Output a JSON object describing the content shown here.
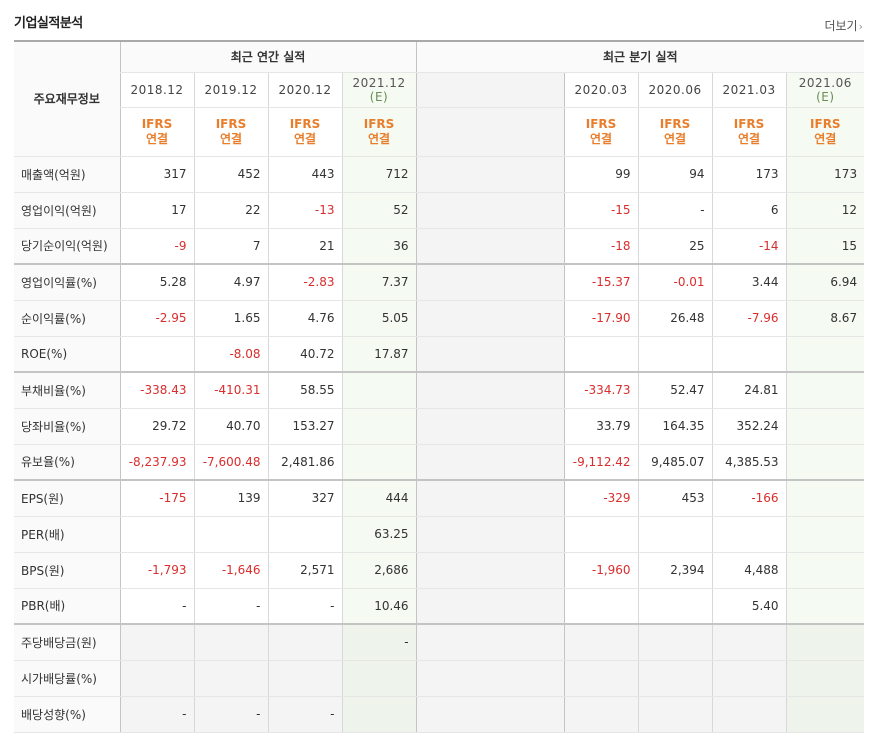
{
  "header": {
    "title": "기업실적분석",
    "more_label": "더보기",
    "more_icon": "chevron-right-icon"
  },
  "table": {
    "corner_label": "주요재무정보",
    "annual_group": "최근 연간 실적",
    "quarter_group": "최근 분기 실적",
    "annual_periods": [
      {
        "label": "2018.12",
        "estimate": false
      },
      {
        "label": "2019.12",
        "estimate": false
      },
      {
        "label": "2020.12",
        "estimate": false
      },
      {
        "label": "2021.12",
        "sub": "(E)",
        "estimate": true
      }
    ],
    "quarter_periods": [
      {
        "label": "2020.03",
        "estimate": false
      },
      {
        "label": "2020.06",
        "estimate": false
      },
      {
        "label": "2021.03",
        "estimate": false
      },
      {
        "label": "2021.06",
        "sub": "(E)",
        "estimate": true
      }
    ],
    "basis_line1": "IFRS",
    "basis_line2": "연결",
    "rows": [
      {
        "label": "매출액(억원)",
        "annual": [
          "317",
          "452",
          "443",
          "712"
        ],
        "quarter": [
          "99",
          "94",
          "173",
          "173"
        ],
        "section_start": false,
        "grey": false
      },
      {
        "label": "영업이익(억원)",
        "annual": [
          "17",
          "22",
          "-13",
          "52"
        ],
        "quarter": [
          "-15",
          "-",
          "6",
          "12"
        ],
        "section_start": false,
        "grey": false
      },
      {
        "label": "당기순이익(억원)",
        "annual": [
          "-9",
          "7",
          "21",
          "36"
        ],
        "quarter": [
          "-18",
          "25",
          "-14",
          "15"
        ],
        "section_start": false,
        "grey": false
      },
      {
        "label": "영업이익률(%)",
        "annual": [
          "5.28",
          "4.97",
          "-2.83",
          "7.37"
        ],
        "quarter": [
          "-15.37",
          "-0.01",
          "3.44",
          "6.94"
        ],
        "section_start": true,
        "grey": false
      },
      {
        "label": "순이익률(%)",
        "annual": [
          "-2.95",
          "1.65",
          "4.76",
          "5.05"
        ],
        "quarter": [
          "-17.90",
          "26.48",
          "-7.96",
          "8.67"
        ],
        "section_start": false,
        "grey": false
      },
      {
        "label": "ROE(%)",
        "annual": [
          "",
          "-8.08",
          "40.72",
          "17.87"
        ],
        "quarter": [
          "",
          "",
          "",
          ""
        ],
        "section_start": false,
        "grey": false
      },
      {
        "label": "부채비율(%)",
        "annual": [
          "-338.43",
          "-410.31",
          "58.55",
          ""
        ],
        "quarter": [
          "-334.73",
          "52.47",
          "24.81",
          ""
        ],
        "section_start": true,
        "grey": false
      },
      {
        "label": "당좌비율(%)",
        "annual": [
          "29.72",
          "40.70",
          "153.27",
          ""
        ],
        "quarter": [
          "33.79",
          "164.35",
          "352.24",
          ""
        ],
        "section_start": false,
        "grey": false
      },
      {
        "label": "유보율(%)",
        "annual": [
          "-8,237.93",
          "-7,600.48",
          "2,481.86",
          ""
        ],
        "quarter": [
          "-9,112.42",
          "9,485.07",
          "4,385.53",
          ""
        ],
        "section_start": false,
        "grey": false
      },
      {
        "label": "EPS(원)",
        "annual": [
          "-175",
          "139",
          "327",
          "444"
        ],
        "quarter": [
          "-329",
          "453",
          "-166",
          ""
        ],
        "section_start": true,
        "grey": false
      },
      {
        "label": "PER(배)",
        "annual": [
          "",
          "",
          "",
          "63.25"
        ],
        "quarter": [
          "",
          "",
          "",
          ""
        ],
        "section_start": false,
        "grey": false
      },
      {
        "label": "BPS(원)",
        "annual": [
          "-1,793",
          "-1,646",
          "2,571",
          "2,686"
        ],
        "quarter": [
          "-1,960",
          "2,394",
          "4,488",
          ""
        ],
        "section_start": false,
        "grey": false
      },
      {
        "label": "PBR(배)",
        "annual": [
          "-",
          "-",
          "-",
          "10.46"
        ],
        "quarter": [
          "",
          "",
          "5.40",
          ""
        ],
        "section_start": false,
        "grey": false
      },
      {
        "label": "주당배당금(원)",
        "annual": [
          "",
          "",
          "",
          "-"
        ],
        "quarter": [
          "",
          "",
          "",
          ""
        ],
        "section_start": true,
        "grey": true
      },
      {
        "label": "시가배당률(%)",
        "annual": [
          "",
          "",
          "",
          ""
        ],
        "quarter": [
          "",
          "",
          "",
          ""
        ],
        "section_start": false,
        "grey": true
      },
      {
        "label": "배당성향(%)",
        "annual": [
          "-",
          "-",
          "-",
          ""
        ],
        "quarter": [
          "",
          "",
          "",
          ""
        ],
        "section_start": false,
        "grey": true
      }
    ]
  },
  "colors": {
    "negative": "#d92d2d",
    "basis": "#e87e2c",
    "estimate_bg": "#f5faf3",
    "estimate_text": "#6a8f55"
  }
}
